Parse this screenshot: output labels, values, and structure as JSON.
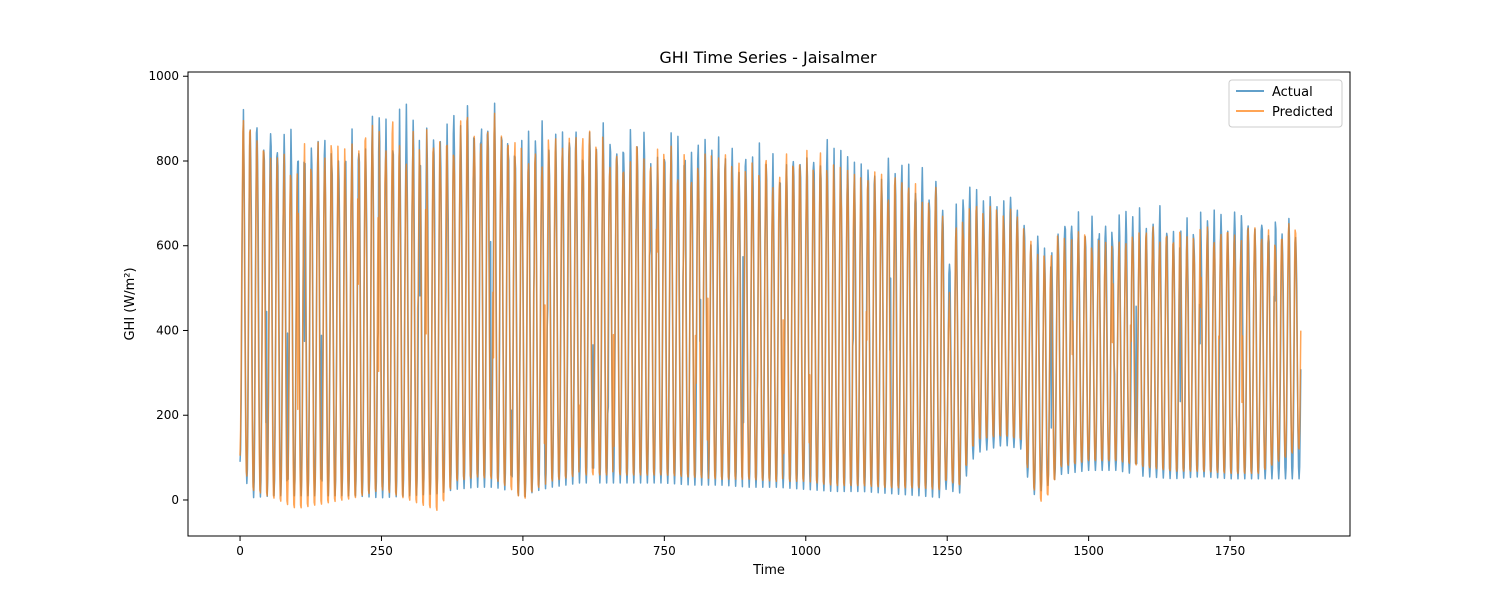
{
  "chart_data": {
    "type": "line",
    "title": "GHI Time Series - Jaisalmer",
    "xlabel": "Time",
    "ylabel": "GHI (W/m²)",
    "xlim": [
      -92,
      1962
    ],
    "ylim": [
      -85,
      1010
    ],
    "xticks": [
      0,
      250,
      500,
      750,
      1000,
      1250,
      1500,
      1750
    ],
    "yticks": [
      0,
      200,
      400,
      600,
      800,
      1000
    ],
    "grid": false,
    "legend_position": "top-right",
    "n_points": 1876,
    "cycle_period": 12,
    "series": [
      {
        "name": "Actual",
        "color": "#1f77b4",
        "opacity": 0.7,
        "x": [
          0,
          250,
          500,
          750,
          1000,
          1250,
          1500,
          1750,
          1875
        ],
        "envelope": {
          "x": [
            0,
            20,
            60,
            100,
            200,
            250,
            300,
            350,
            380,
            420,
            450,
            480,
            500,
            520,
            550,
            600,
            650,
            700,
            750,
            800,
            850,
            900,
            950,
            1000,
            1050,
            1100,
            1150,
            1200,
            1240,
            1250,
            1270,
            1300,
            1350,
            1380,
            1400,
            1420,
            1450,
            1500,
            1550,
            1600,
            1650,
            1700,
            1750,
            1800,
            1875
          ],
          "max": [
            920,
            945,
            930,
            880,
            900,
            930,
            940,
            920,
            945,
            955,
            945,
            900,
            860,
            890,
            900,
            900,
            890,
            885,
            880,
            870,
            860,
            850,
            840,
            870,
            850,
            820,
            810,
            800,
            780,
            560,
            740,
            760,
            730,
            720,
            660,
            630,
            700,
            680,
            680,
            700,
            690,
            680,
            690,
            700,
            690
          ],
          "min": [
            90,
            5,
            10,
            10,
            10,
            5,
            10,
            15,
            25,
            30,
            30,
            20,
            5,
            20,
            30,
            40,
            40,
            40,
            40,
            35,
            35,
            30,
            30,
            25,
            20,
            20,
            15,
            10,
            5,
            30,
            10,
            110,
            130,
            120,
            10,
            25,
            60,
            70,
            70,
            55,
            50,
            55,
            50,
            50,
            50
          ]
        }
      },
      {
        "name": "Predicted",
        "color": "#ff7f0e",
        "opacity": 0.7,
        "x": [
          0,
          250,
          500,
          750,
          1000,
          1250,
          1500,
          1750,
          1875
        ],
        "envelope": {
          "x": [
            0,
            20,
            60,
            100,
            200,
            250,
            300,
            350,
            380,
            420,
            450,
            480,
            500,
            520,
            550,
            600,
            650,
            700,
            750,
            800,
            850,
            900,
            950,
            1000,
            1050,
            1100,
            1150,
            1200,
            1240,
            1250,
            1270,
            1300,
            1350,
            1380,
            1400,
            1420,
            1450,
            1500,
            1550,
            1600,
            1650,
            1700,
            1750,
            1800,
            1875
          ],
          "max": [
            920,
            900,
            850,
            850,
            880,
            920,
            900,
            880,
            920,
            930,
            930,
            900,
            850,
            880,
            880,
            890,
            880,
            860,
            860,
            830,
            840,
            820,
            820,
            840,
            830,
            800,
            790,
            780,
            760,
            460,
            720,
            700,
            700,
            690,
            620,
            600,
            650,
            640,
            640,
            660,
            650,
            660,
            660,
            660,
            660
          ],
          "min": [
            100,
            20,
            0,
            -25,
            0,
            20,
            -5,
            -30,
            40,
            50,
            45,
            20,
            -5,
            20,
            40,
            55,
            55,
            55,
            55,
            50,
            45,
            45,
            40,
            40,
            30,
            30,
            25,
            25,
            20,
            50,
            25,
            140,
            150,
            140,
            30,
            -15,
            75,
            90,
            90,
            75,
            65,
            65,
            60,
            60,
            120
          ]
        }
      }
    ]
  }
}
